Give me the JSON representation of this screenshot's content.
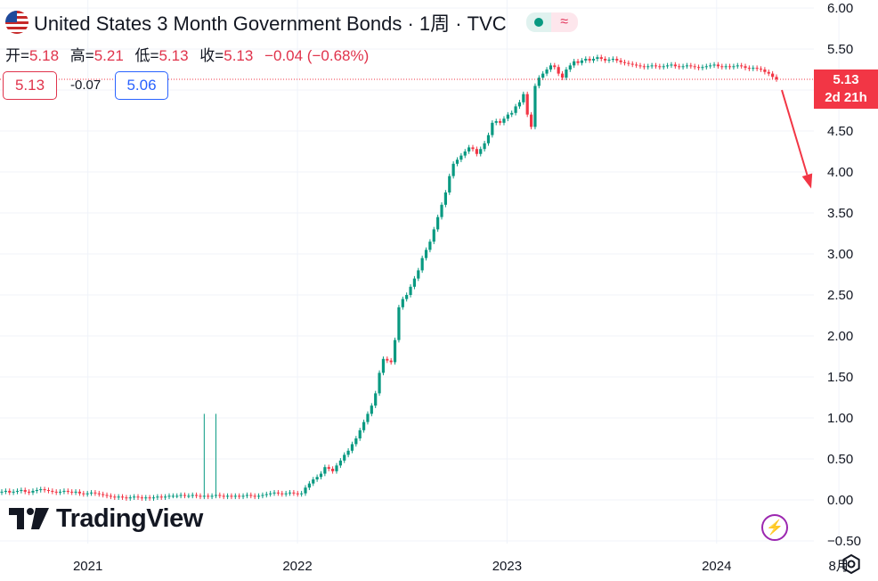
{
  "header": {
    "title": "United States 3 Month Government Bonds · 1周 · TVC",
    "live_dot_color": "#089981",
    "wave_symbol": "≈",
    "flag_icon": "us-flag-icon"
  },
  "ohlc": {
    "open_label": "开=",
    "open": "5.18",
    "high_label": "高=",
    "high": "5.21",
    "low_label": "低=",
    "low": "5.13",
    "close_label": "收=",
    "close": "5.13",
    "change": "−0.04 (−0.68%)"
  },
  "quote": {
    "bid": "5.13",
    "spread": "-0.07",
    "ask": "5.06"
  },
  "price_tag": {
    "price": "5.13",
    "countdown": "2d 21h"
  },
  "brand": {
    "name": "TradingView"
  },
  "colors": {
    "up": "#089981",
    "down": "#f23645",
    "text": "#131722",
    "grid": "#f0f3fa",
    "arrow": "#f23645"
  },
  "chart_data": {
    "type": "candlestick",
    "title": "United States 3 Month Government Bonds · 1周 · TVC",
    "y_range": [
      -0.5,
      6.0
    ],
    "y_ticks": [
      "6.00",
      "5.50",
      "5.00",
      "4.50",
      "4.00",
      "3.50",
      "3.00",
      "2.50",
      "2.00",
      "1.50",
      "1.00",
      "0.50",
      "0.00",
      "−0.50"
    ],
    "x_ticks": [
      "2021",
      "2022",
      "2023",
      "2024",
      "8月"
    ],
    "x_tick_dates": [
      "2021-01-01",
      "2022-01-01",
      "2023-01-01",
      "2024-01-01",
      "2024-08-01"
    ],
    "x_range": [
      "2020-08-01",
      "2024-10-08"
    ],
    "last_price": 5.13,
    "closes": [
      0.1,
      0.11,
      0.09,
      0.1,
      0.11,
      0.12,
      0.1,
      0.09,
      0.11,
      0.12,
      0.13,
      0.12,
      0.11,
      0.1,
      0.09,
      0.1,
      0.11,
      0.1,
      0.09,
      0.1,
      0.08,
      0.07,
      0.08,
      0.09,
      0.08,
      0.07,
      0.06,
      0.05,
      0.04,
      0.03,
      0.04,
      0.03,
      0.02,
      0.03,
      0.04,
      0.03,
      0.02,
      0.03,
      0.02,
      0.03,
      0.04,
      0.03,
      0.04,
      0.05,
      0.05,
      0.05,
      0.06,
      0.05,
      0.05,
      0.06,
      0.05,
      0.04,
      0.05,
      0.04,
      0.05,
      0.06,
      0.05,
      0.04,
      0.05,
      0.04,
      0.05,
      0.04,
      0.05,
      0.06,
      0.05,
      0.04,
      0.05,
      0.06,
      0.07,
      0.08,
      0.09,
      0.08,
      0.07,
      0.08,
      0.09,
      0.08,
      0.07,
      0.08,
      0.15,
      0.2,
      0.25,
      0.28,
      0.32,
      0.4,
      0.38,
      0.35,
      0.42,
      0.48,
      0.55,
      0.6,
      0.68,
      0.75,
      0.85,
      0.95,
      1.05,
      1.15,
      1.3,
      1.55,
      1.72,
      1.7,
      1.68,
      1.95,
      2.35,
      2.45,
      2.5,
      2.6,
      2.7,
      2.8,
      2.95,
      3.05,
      3.15,
      3.3,
      3.45,
      3.6,
      3.75,
      3.95,
      4.1,
      4.15,
      4.2,
      4.25,
      4.3,
      4.28,
      4.22,
      4.28,
      4.35,
      4.45,
      4.6,
      4.62,
      4.6,
      4.65,
      4.7,
      4.72,
      4.8,
      4.85,
      4.95,
      4.7,
      4.55,
      5.05,
      5.15,
      5.2,
      5.25,
      5.3,
      5.28,
      5.2,
      5.15,
      5.25,
      5.3,
      5.35,
      5.33,
      5.36,
      5.38,
      5.36,
      5.38,
      5.4,
      5.38,
      5.36,
      5.37,
      5.38,
      5.36,
      5.34,
      5.33,
      5.32,
      5.31,
      5.3,
      5.29,
      5.28,
      5.29,
      5.3,
      5.29,
      5.28,
      5.29,
      5.3,
      5.31,
      5.29,
      5.28,
      5.29,
      5.3,
      5.29,
      5.28,
      5.27,
      5.28,
      5.29,
      5.3,
      5.31,
      5.29,
      5.28,
      5.29,
      5.28,
      5.29,
      5.3,
      5.29,
      5.27,
      5.26,
      5.27,
      5.26,
      5.25,
      5.22,
      5.2,
      5.16,
      5.13
    ],
    "spikes": [
      {
        "index": 52,
        "high": 1.05
      },
      {
        "index": 55,
        "high": 1.05
      }
    ],
    "forecast_arrow": {
      "from": 5.13,
      "to": 3.95
    }
  }
}
